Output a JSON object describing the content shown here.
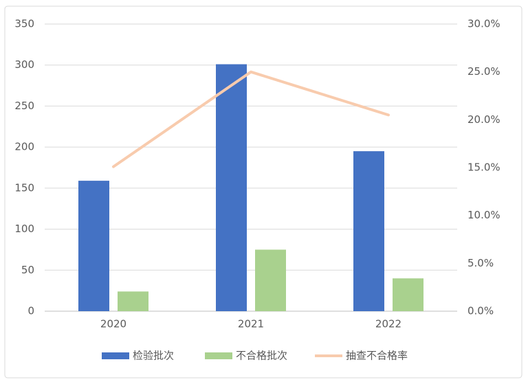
{
  "chart_data": {
    "type": "bar",
    "categories": [
      "2020",
      "2021",
      "2022"
    ],
    "series": [
      {
        "name": "检验批次",
        "type": "bar",
        "color": "#4472c4",
        "values": [
          159,
          301,
          195
        ]
      },
      {
        "name": "不合格批次",
        "type": "bar",
        "color": "#a9d18e",
        "values": [
          24,
          75,
          40
        ]
      },
      {
        "name": "抽查不合格率",
        "type": "line",
        "axis": "y2",
        "color": "#f8cbad",
        "values": [
          15.1,
          25.0,
          20.5
        ]
      }
    ],
    "ylim": [
      0,
      350
    ],
    "yticks": [
      0,
      50,
      100,
      150,
      200,
      250,
      300,
      350
    ],
    "y2lim": [
      0,
      30
    ],
    "y2ticks": [
      {
        "value": 0,
        "label": "0.0%"
      },
      {
        "value": 5,
        "label": "5.0%"
      },
      {
        "value": 10,
        "label": "10.0%"
      },
      {
        "value": 15,
        "label": "15.0%"
      },
      {
        "value": 20,
        "label": "20.0%"
      },
      {
        "value": 25,
        "label": "25.0%"
      },
      {
        "value": 30,
        "label": "30.0%"
      }
    ],
    "grid": true,
    "legend": "bottom"
  }
}
